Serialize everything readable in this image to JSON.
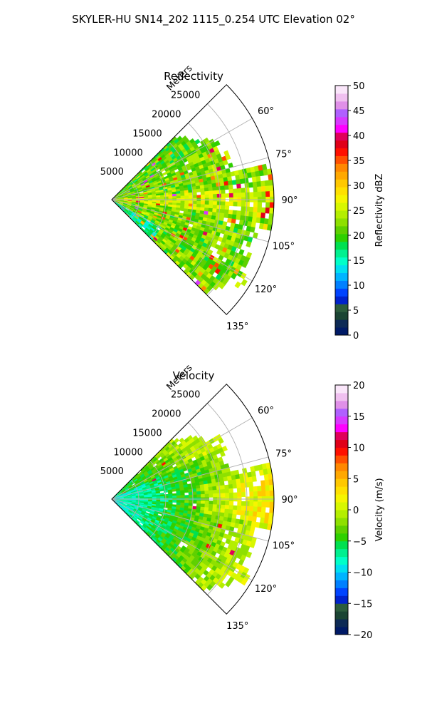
{
  "figure": {
    "title": "SKYLER-HU  SN14_202  1115_0.254 UTC Elevation 02°"
  },
  "chart_data": [
    {
      "type": "heatmap",
      "subtype": "polar sector (PPI radar scan)",
      "title": "Reflectivity",
      "radial_label": "Meters",
      "radial_ticks": [
        "5000",
        "10000",
        "15000",
        "20000",
        "25000"
      ],
      "radial_values": [
        5000,
        10000,
        15000,
        20000,
        25000
      ],
      "radial_max": 30000,
      "angle_ticks": [
        "60°",
        "75°",
        "90°",
        "105°",
        "120°",
        "135°"
      ],
      "angle_values": [
        60,
        75,
        90,
        105,
        120,
        135
      ],
      "theta_range": [
        45,
        135
      ],
      "grid": true,
      "colorbar": {
        "label": "Reflectivity dBZ",
        "range": [
          0,
          50
        ],
        "tick_values": [
          0,
          5,
          10,
          15,
          20,
          25,
          30,
          35,
          40,
          45,
          50
        ],
        "tick_labels": [
          "0",
          "5",
          "10",
          "15",
          "20",
          "25",
          "30",
          "35",
          "40",
          "45",
          "50"
        ],
        "colormap": [
          "#001a66",
          "#0d2a55",
          "#1b4433",
          "#2c5c3c",
          "#0022cc",
          "#0044ff",
          "#0080ff",
          "#00b4ff",
          "#00e0f0",
          "#00ffc8",
          "#00f090",
          "#00e050",
          "#2fd000",
          "#5ed000",
          "#8ee000",
          "#b4ee00",
          "#d8f700",
          "#f6f500",
          "#ffe000",
          "#ffc800",
          "#ffa800",
          "#ff8800",
          "#ff5000",
          "#ff1000",
          "#e00018",
          "#e0005a",
          "#ff00ff",
          "#d838ff",
          "#b060ff",
          "#e090e8",
          "#f0c0f0",
          "#fae6fa"
        ]
      },
      "field_summary": {
        "dominant_range": [
          18,
          28
        ],
        "max_observed": 45,
        "description_values": "mostly 20–28 dBZ, embedded 30–38 dBZ cores"
      }
    },
    {
      "type": "heatmap",
      "subtype": "polar sector (PPI radar scan)",
      "title": "Velocity",
      "radial_label": "Meters",
      "radial_ticks": [
        "5000",
        "10000",
        "15000",
        "20000",
        "25000"
      ],
      "radial_values": [
        5000,
        10000,
        15000,
        20000,
        25000
      ],
      "radial_max": 30000,
      "angle_ticks": [
        "60°",
        "75°",
        "90°",
        "105°",
        "120°",
        "135°"
      ],
      "angle_values": [
        60,
        75,
        90,
        105,
        120,
        135
      ],
      "theta_range": [
        45,
        135
      ],
      "grid": true,
      "colorbar": {
        "label": "Velocity (m/s)",
        "range": [
          -20,
          20
        ],
        "tick_values": [
          -20,
          -15,
          -10,
          -5,
          0,
          5,
          10,
          15,
          20
        ],
        "tick_labels": [
          "−20",
          "−15",
          "−10",
          "−5",
          "0",
          "5",
          "10",
          "15",
          "20"
        ],
        "colormap": [
          "#001a66",
          "#0d2a55",
          "#1b4433",
          "#2c5c3c",
          "#0022cc",
          "#0044ff",
          "#0080ff",
          "#00b4ff",
          "#00e0f0",
          "#00ffc8",
          "#00f090",
          "#00e050",
          "#2fd000",
          "#5ed000",
          "#8ee000",
          "#b4ee00",
          "#d8f700",
          "#f6f500",
          "#ffe000",
          "#ffc800",
          "#ffa800",
          "#ff8800",
          "#ff5000",
          "#ff1000",
          "#e00018",
          "#e0005a",
          "#ff00ff",
          "#d838ff",
          "#b060ff",
          "#e090e8",
          "#f0c0f0",
          "#fae6fa"
        ]
      },
      "field_summary": {
        "dominant_range": [
          -10,
          2
        ],
        "near_radar": -11,
        "far_field": 1
      }
    }
  ]
}
